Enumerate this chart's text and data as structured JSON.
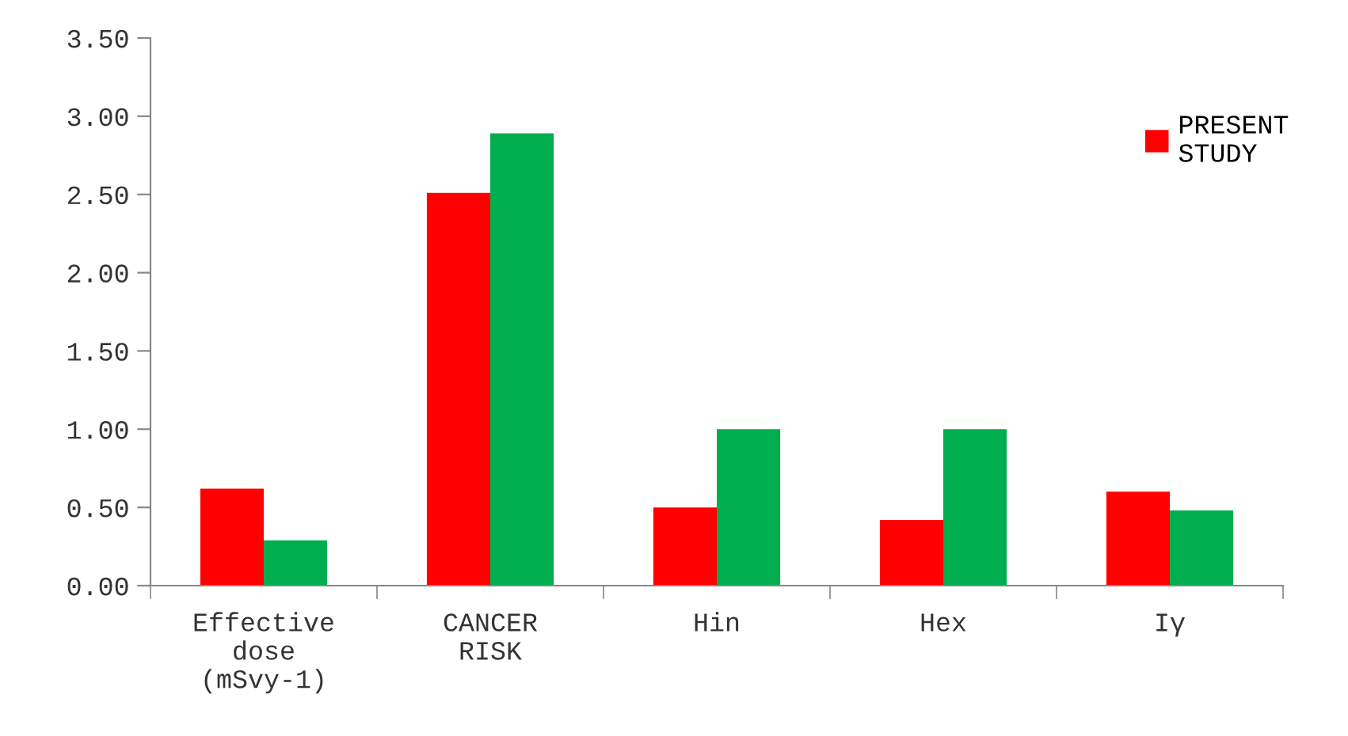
{
  "chart_data": {
    "type": "bar",
    "categories": [
      "Effective\ndose\n(mSvy-1)",
      "CANCER\nRISK",
      "Hin",
      "Hex",
      "Iγ"
    ],
    "series": [
      {
        "name": "PRESENT\nSTUDY",
        "color": "#ff0000",
        "values": [
          0.62,
          2.51,
          0.5,
          0.42,
          0.6
        ]
      },
      {
        "color": "#00ad4f",
        "values": [
          0.29,
          2.89,
          1.0,
          1.0,
          0.48
        ]
      }
    ],
    "ylim": [
      0,
      3.5
    ],
    "yticks": [
      {
        "value": 0,
        "label": "0.00"
      },
      {
        "value": 0.5,
        "label": "0.50"
      },
      {
        "value": 1,
        "label": "1.00"
      },
      {
        "value": 1.5,
        "label": "1.50"
      },
      {
        "value": 2,
        "label": "2.00"
      },
      {
        "value": 2.5,
        "label": "2.50"
      },
      {
        "value": 3,
        "label": "3.00"
      },
      {
        "value": 3.5,
        "label": "3.50"
      }
    ],
    "grid": false,
    "legend": "top right"
  }
}
